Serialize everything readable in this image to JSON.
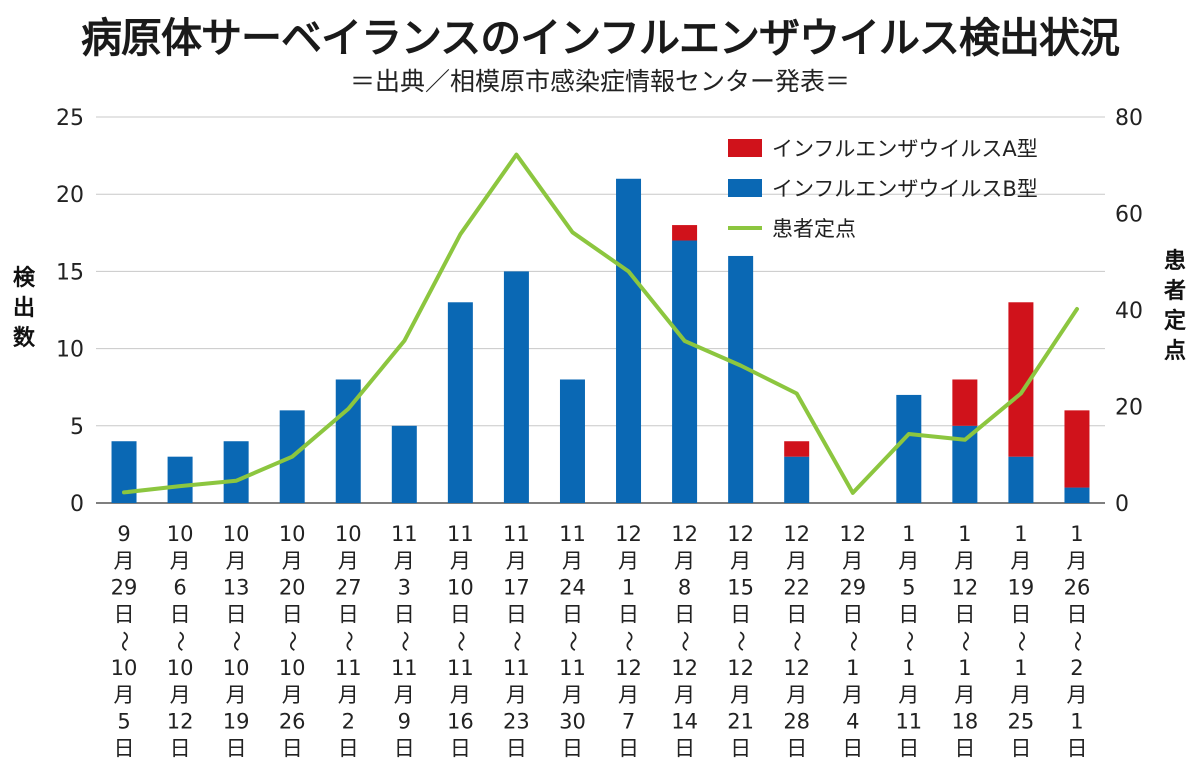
{
  "chart_data": {
    "type": "bar",
    "title": "病原体サーベイランスのインフルエンザウイルス検出状況",
    "subtitle": "＝出典／相模原市感染症情報センター発表＝",
    "categories": [
      "9月29日～10月5日",
      "10月6日～10月12日",
      "10月13日～10月19日",
      "10月20日～10月26日",
      "10月27日～11月2日",
      "11月3日～11月9日",
      "11月10日～11月16日",
      "11月17日～11月23日",
      "11月24日～11月30日",
      "12月1日～12月7日",
      "12月8日～12月14日",
      "12月15日～12月21日",
      "12月22日～12月28日",
      "12月29日～1月4日",
      "1月5日～1月11日",
      "1月12日～1月18日",
      "1月19日～1月25日",
      "1月26日～2月1日"
    ],
    "category_lines": [
      [
        "9",
        "月",
        "29",
        "日",
        "～",
        "10",
        "月",
        "5",
        "日"
      ],
      [
        "10",
        "月",
        "6",
        "日",
        "～",
        "10",
        "月",
        "12",
        "日"
      ],
      [
        "10",
        "月",
        "13",
        "日",
        "～",
        "10",
        "月",
        "19",
        "日"
      ],
      [
        "10",
        "月",
        "20",
        "日",
        "～",
        "10",
        "月",
        "26",
        "日"
      ],
      [
        "10",
        "月",
        "27",
        "日",
        "～",
        "11",
        "月",
        "2",
        "日"
      ],
      [
        "11",
        "月",
        "3",
        "日",
        "～",
        "11",
        "月",
        "9",
        "日"
      ],
      [
        "11",
        "月",
        "10",
        "日",
        "～",
        "11",
        "月",
        "16",
        "日"
      ],
      [
        "11",
        "月",
        "17",
        "日",
        "～",
        "11",
        "月",
        "23",
        "日"
      ],
      [
        "11",
        "月",
        "24",
        "日",
        "～",
        "11",
        "月",
        "30",
        "日"
      ],
      [
        "12",
        "月",
        "1",
        "日",
        "～",
        "12",
        "月",
        "7",
        "日"
      ],
      [
        "12",
        "月",
        "8",
        "日",
        "～",
        "12",
        "月",
        "14",
        "日"
      ],
      [
        "12",
        "月",
        "15",
        "日",
        "～",
        "12",
        "月",
        "21",
        "日"
      ],
      [
        "12",
        "月",
        "22",
        "日",
        "～",
        "12",
        "月",
        "28",
        "日"
      ],
      [
        "12",
        "月",
        "29",
        "日",
        "～",
        "1",
        "月",
        "4",
        "日"
      ],
      [
        "1",
        "月",
        "5",
        "日",
        "～",
        "1",
        "月",
        "11",
        "日"
      ],
      [
        "1",
        "月",
        "12",
        "日",
        "～",
        "1",
        "月",
        "18",
        "日"
      ],
      [
        "1",
        "月",
        "19",
        "日",
        "～",
        "1",
        "月",
        "25",
        "日"
      ],
      [
        "1",
        "月",
        "26",
        "日",
        "～",
        "2",
        "月",
        "1",
        "日"
      ]
    ],
    "series": [
      {
        "name": "インフルエンザウイルスB型",
        "kind": "bar",
        "axis": "left",
        "color": "#0a68b4",
        "values": [
          4,
          3,
          4,
          6,
          8,
          5,
          13,
          15,
          8,
          21,
          17,
          16,
          3,
          0,
          7,
          5,
          3,
          1
        ]
      },
      {
        "name": "インフルエンザウイルスA型",
        "kind": "bar",
        "axis": "left",
        "color": "#d0121b",
        "values": [
          0,
          0,
          0,
          0,
          0,
          0,
          0,
          0,
          0,
          0,
          1,
          0,
          1,
          0,
          0,
          3,
          10,
          5
        ]
      },
      {
        "name": "患者定点",
        "kind": "line",
        "axis": "right",
        "color": "#8cc63f",
        "values": [
          2.2,
          3.5,
          4.6,
          9.6,
          19.5,
          33.6,
          55.7,
          72.2,
          56.1,
          48.0,
          33.6,
          28.5,
          22.7,
          2.1,
          14.3,
          13.1,
          22.7,
          40.2
        ]
      }
    ],
    "legend": [
      {
        "label": "インフルエンザウイルスA型",
        "color": "#d0121b",
        "kind": "bar"
      },
      {
        "label": "インフルエンザウイルスB型",
        "color": "#0a68b4",
        "kind": "bar"
      },
      {
        "label": "患者定点",
        "color": "#8cc63f",
        "kind": "line"
      }
    ],
    "legend_position": "top-right",
    "ylabel": "検出数",
    "y2label": "患者定点",
    "ylim": [
      0,
      25
    ],
    "yticks": [
      0,
      5,
      10,
      15,
      20,
      25
    ],
    "y2lim": [
      0,
      80
    ],
    "y2ticks": [
      0,
      20,
      40,
      60,
      80
    ],
    "grid": true
  }
}
